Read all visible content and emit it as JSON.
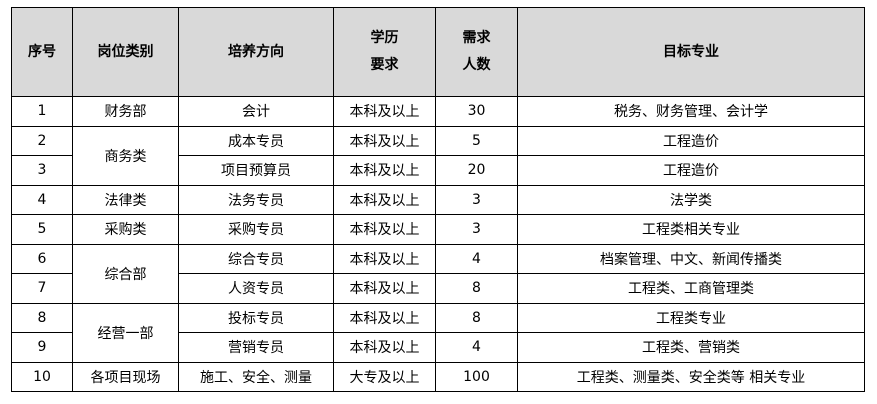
{
  "headers": [
    "序号",
    "岗位类别",
    "培养方向",
    "学历\n要求",
    "需求\n人数",
    "目标专业"
  ],
  "header_lines": {
    "edu": [
      "学历",
      "要求"
    ],
    "count": [
      "需求",
      "人数"
    ]
  },
  "rows": [
    {
      "no": "1",
      "category": "财务部",
      "direction": "会计",
      "edu": "本科及以上",
      "count": "30",
      "major": "税务、财务管理、会计学"
    },
    {
      "no": "2",
      "category": "商务类",
      "direction": "成本专员",
      "edu": "本科及以上",
      "count": "5",
      "major": "工程造价"
    },
    {
      "no": "3",
      "category": "",
      "direction": "项目预算员",
      "edu": "本科及以上",
      "count": "20",
      "major": "工程造价"
    },
    {
      "no": "4",
      "category": "法律类",
      "direction": "法务专员",
      "edu": "本科及以上",
      "count": "3",
      "major": "法学类"
    },
    {
      "no": "5",
      "category": "采购类",
      "direction": "采购专员",
      "edu": "本科及以上",
      "count": "3",
      "major": "工程类相关专业"
    },
    {
      "no": "6",
      "category": "综合部",
      "direction": "综合专员",
      "edu": "本科及以上",
      "count": "4",
      "major": "档案管理、中文、新闻传播类"
    },
    {
      "no": "7",
      "category": "",
      "direction": "人资专员",
      "edu": "本科及以上",
      "count": "8",
      "major": "工程类、工商管理类"
    },
    {
      "no": "8",
      "category": "经营一部",
      "direction": "投标专员",
      "edu": "本科及以上",
      "count": "8",
      "major": "工程类专业"
    },
    {
      "no": "9",
      "category": "",
      "direction": "营销专员",
      "edu": "本科及以上",
      "count": "4",
      "major": "工程类、营销类"
    },
    {
      "no": "10",
      "category": "各项目现场",
      "direction": "施工、安全、测量",
      "edu": "大专及以上",
      "count": "100",
      "major": "工程类、测量类、安全类等 相关专业"
    }
  ],
  "colors": {
    "header_bg": "#d9d9d9",
    "border": "#000000"
  }
}
